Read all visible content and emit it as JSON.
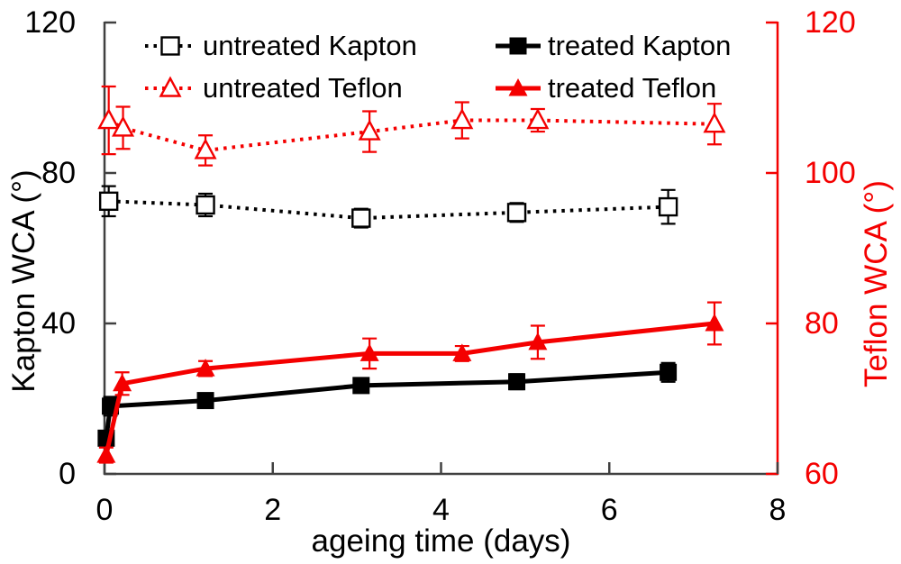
{
  "chart_data": {
    "type": "line",
    "title": "",
    "xlabel": "ageing time (days)",
    "ylabel_left": "Kapton WCA (°)",
    "ylabel_right": "Teflon WCA (°)",
    "xlim": [
      0,
      8
    ],
    "left_ylim": [
      0,
      120
    ],
    "right_ylim": [
      60,
      120
    ],
    "x_ticks": [
      0,
      2,
      4,
      6,
      8
    ],
    "left_ticks": [
      0,
      40,
      80,
      120
    ],
    "right_ticks": [
      60,
      80,
      100,
      120
    ],
    "grid": false,
    "legend_position": "top-inside-two-columns",
    "colors": {
      "kapton_black": "#000000",
      "teflon_red": "#f40000",
      "axis_gray": "#404040",
      "background": "#ffffff"
    },
    "series": [
      {
        "name": "untreated Kapton",
        "axis": "left",
        "color": "#000000",
        "line": "dotted",
        "marker": "open-square",
        "x": [
          0.05,
          1.2,
          3.05,
          4.9,
          6.7
        ],
        "y": [
          72.5,
          71.5,
          68,
          69.5,
          71
        ],
        "err": [
          4,
          3,
          2.5,
          2.5,
          4.5
        ]
      },
      {
        "name": "untreated Teflon",
        "axis": "right",
        "color": "#f40000",
        "line": "dotted",
        "marker": "open-triangle",
        "x": [
          0.05,
          0.22,
          1.2,
          3.15,
          4.25,
          5.15,
          7.25
        ],
        "y": [
          107,
          106,
          103,
          105.5,
          107,
          107,
          106.5
        ],
        "err": [
          4.5,
          2.8,
          2,
          2.7,
          2.4,
          1.5,
          2.7
        ]
      },
      {
        "name": "treated Kapton",
        "axis": "left",
        "color": "#000000",
        "line": "solid",
        "marker": "filled-square",
        "x": [
          0.02,
          0.07,
          1.2,
          3.05,
          4.9,
          6.7
        ],
        "y": [
          9.5,
          18,
          19.5,
          23.5,
          24.5,
          27
        ],
        "err": [
          1.5,
          2.5,
          1.5,
          1.2,
          2,
          2.5
        ]
      },
      {
        "name": "treated Teflon",
        "axis": "right",
        "color": "#f40000",
        "line": "solid",
        "marker": "filled-triangle",
        "x": [
          0.02,
          0.21,
          1.2,
          3.15,
          4.25,
          5.15,
          7.25
        ],
        "y": [
          62.5,
          72,
          74,
          76,
          76,
          77.5,
          80
        ],
        "err": [
          1,
          1.5,
          1,
          2,
          1,
          2.2,
          2.8
        ]
      }
    ]
  }
}
